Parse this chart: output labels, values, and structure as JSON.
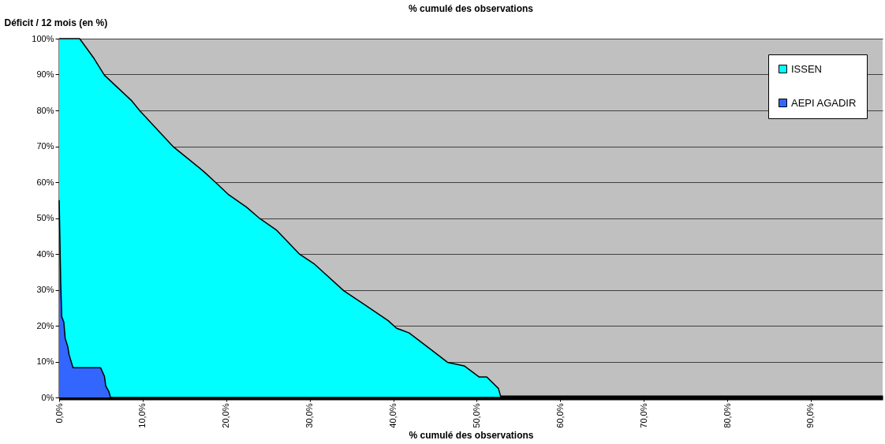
{
  "chart_data": {
    "type": "area",
    "title": "% cumulé des observations",
    "xlabel": "% cumulé des observations",
    "ylabel": "Déficit / 12 mois (en %)",
    "series": [
      {
        "name": "ISSEN",
        "color": "#00ffff",
        "x": [
          0,
          2.45,
          4.17,
          5.42,
          8.72,
          9.66,
          13.7,
          17.3,
          18.7,
          20.3,
          22.4,
          23.9,
          26.0,
          28.8,
          30.5,
          34.1,
          36.3,
          39.4,
          40.4,
          41.9,
          44.5,
          46.5,
          48.5,
          50.3,
          51.2,
          52.6,
          52.9,
          98.6
        ],
        "values": [
          100,
          100,
          94.5,
          89.8,
          82.6,
          79.9,
          69.8,
          63.0,
          60.0,
          56.5,
          53.1,
          50.1,
          46.7,
          39.9,
          37.3,
          29.7,
          26.3,
          21.4,
          19.3,
          18.0,
          13.4,
          9.8,
          8.8,
          5.7,
          5.7,
          2.5,
          0,
          0
        ]
      },
      {
        "name": "AEPI AGADIR",
        "color": "#3366ff",
        "x": [
          0,
          0.19,
          0.31,
          0.56,
          0.72,
          1.03,
          1.19,
          1.66,
          4.96,
          5.42,
          5.58,
          5.96,
          6.15,
          98.6
        ],
        "values": [
          55,
          31.6,
          22.5,
          21.0,
          16.5,
          14.2,
          11.9,
          8.3,
          8.3,
          5.9,
          3.2,
          1.6,
          0,
          0
        ]
      }
    ],
    "xlim": [
      0,
      98.6
    ],
    "ylim": [
      0,
      100
    ],
    "xticks": [
      {
        "value": 0,
        "label": "0,0%"
      },
      {
        "value": 10,
        "label": "10,0%"
      },
      {
        "value": 20,
        "label": "20,0%"
      },
      {
        "value": 30,
        "label": "30,0%"
      },
      {
        "value": 40,
        "label": "40,0%"
      },
      {
        "value": 50,
        "label": "50,0%"
      },
      {
        "value": 60,
        "label": "60,0%"
      },
      {
        "value": 70,
        "label": "70,0%"
      },
      {
        "value": 80,
        "label": "80,0%"
      },
      {
        "value": 90,
        "label": "90,0%"
      }
    ],
    "yticks": [
      {
        "value": 0,
        "label": "0%"
      },
      {
        "value": 10,
        "label": "10%"
      },
      {
        "value": 20,
        "label": "20%"
      },
      {
        "value": 30,
        "label": "30%"
      },
      {
        "value": 40,
        "label": "40%"
      },
      {
        "value": 50,
        "label": "50%"
      },
      {
        "value": 60,
        "label": "60%"
      },
      {
        "value": 70,
        "label": "70%"
      },
      {
        "value": 80,
        "label": "80%"
      },
      {
        "value": 90,
        "label": "90%"
      },
      {
        "value": 100,
        "label": "100%"
      }
    ],
    "grid": "y",
    "legend": "top right"
  }
}
